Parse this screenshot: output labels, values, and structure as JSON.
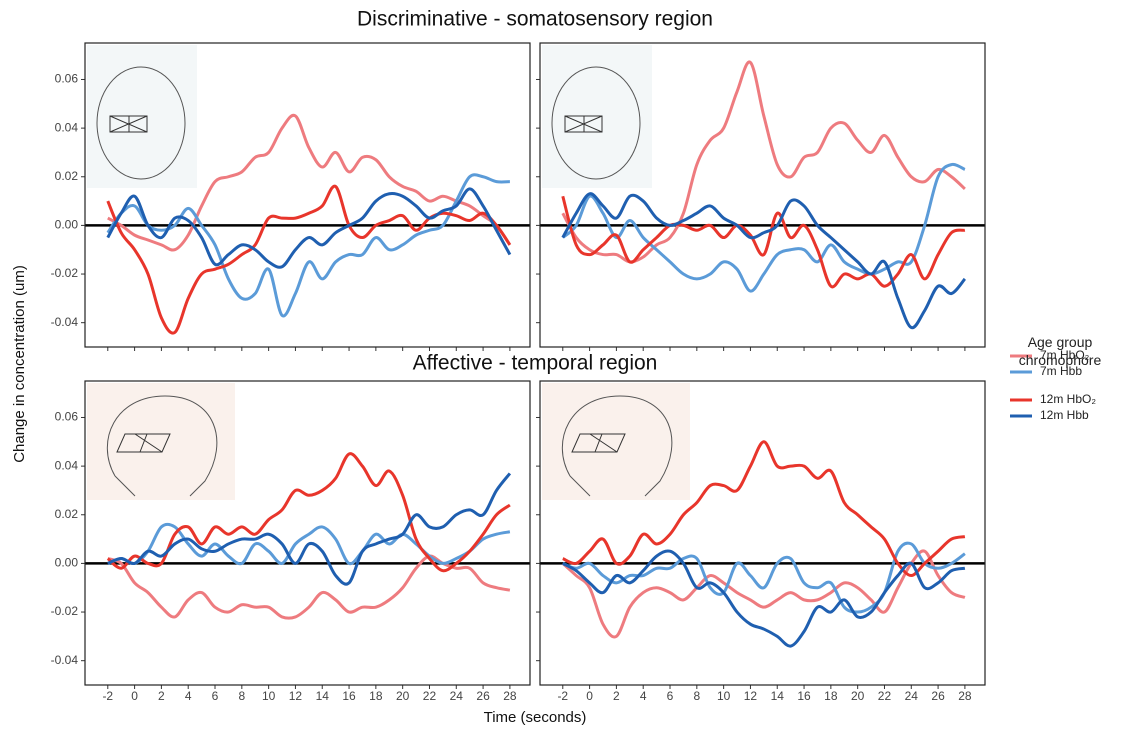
{
  "figure": {
    "y_label": "Change in concentration (um)",
    "x_label": "Time (seconds)",
    "legend_title": "Age group chromophore"
  },
  "chart_data": [
    {
      "type": "line",
      "title": "Discriminative - somatosensory region",
      "x": [
        -2,
        -1,
        0,
        1,
        2,
        3,
        4,
        5,
        6,
        7,
        8,
        9,
        10,
        11,
        12,
        13,
        14,
        15,
        16,
        17,
        18,
        19,
        20,
        21,
        22,
        23,
        24,
        25,
        26,
        27,
        28
      ],
      "xlim": [
        -3.7,
        29.5
      ],
      "ylim": [
        -0.05,
        0.075
      ],
      "xticks": [
        -2,
        0,
        2,
        4,
        6,
        8,
        10,
        12,
        14,
        16,
        18,
        20,
        22,
        24,
        26,
        28
      ],
      "yticks": [
        -0.04,
        -0.02,
        {
          "value": 0,
          "label": "0.00"
        },
        0.02,
        0.04,
        0.06
      ],
      "series": [
        {
          "name": "7m HbO₂",
          "color": "#ee7b7f",
          "values": [
            0.003,
            0.0,
            -0.004,
            -0.006,
            -0.008,
            -0.01,
            -0.004,
            0.008,
            0.018,
            0.02,
            0.022,
            0.028,
            0.03,
            0.04,
            0.045,
            0.032,
            0.024,
            0.03,
            0.022,
            0.028,
            0.027,
            0.02,
            0.016,
            0.014,
            0.01,
            0.012,
            0.01,
            0.008,
            0.004,
            0.0,
            -0.008
          ]
        },
        {
          "name": "7m Hbb",
          "color": "#5b9bd8",
          "values": [
            -0.003,
            0.005,
            0.008,
            0.0,
            -0.002,
            0.0,
            0.007,
            0.0,
            -0.008,
            -0.022,
            -0.03,
            -0.028,
            -0.018,
            -0.037,
            -0.028,
            -0.015,
            -0.022,
            -0.015,
            -0.012,
            -0.012,
            -0.005,
            -0.01,
            -0.008,
            -0.004,
            -0.002,
            0.0,
            0.01,
            0.02,
            0.02,
            0.018,
            0.018
          ]
        },
        {
          "name": "12m HbO₂",
          "color": "#e8352b",
          "values": [
            0.01,
            -0.003,
            -0.01,
            -0.02,
            -0.038,
            -0.044,
            -0.03,
            -0.02,
            -0.018,
            -0.016,
            -0.012,
            -0.008,
            0.003,
            0.003,
            0.003,
            0.005,
            0.008,
            0.016,
            0.0,
            -0.005,
            0.0,
            0.002,
            0.004,
            -0.002,
            0.003,
            0.005,
            0.004,
            0.002,
            0.005,
            0.0,
            -0.008
          ]
        },
        {
          "name": "12m Hbb",
          "color": "#1f5fb0",
          "values": [
            -0.005,
            0.005,
            0.012,
            0.0,
            -0.005,
            0.003,
            0.002,
            -0.005,
            -0.016,
            -0.012,
            -0.008,
            -0.01,
            -0.015,
            -0.017,
            -0.01,
            -0.005,
            -0.008,
            -0.003,
            0.0,
            0.003,
            0.01,
            0.013,
            0.012,
            0.008,
            0.003,
            0.006,
            0.008,
            0.015,
            0.008,
            -0.002,
            -0.012
          ]
        }
      ]
    },
    {
      "type": "line",
      "x": [
        -2,
        -1,
        0,
        1,
        2,
        3,
        4,
        5,
        6,
        7,
        8,
        9,
        10,
        11,
        12,
        13,
        14,
        15,
        16,
        17,
        18,
        19,
        20,
        21,
        22,
        23,
        24,
        25,
        26,
        27,
        28
      ],
      "xlim": [
        -3.7,
        29.5
      ],
      "ylim": [
        -0.05,
        0.075
      ],
      "xticks": [
        -2,
        0,
        2,
        4,
        6,
        8,
        10,
        12,
        14,
        16,
        18,
        20,
        22,
        24,
        26,
        28
      ],
      "yticks": [
        -0.04,
        -0.02,
        {
          "value": 0,
          "label": "0.00"
        },
        0.02,
        0.04,
        0.06
      ],
      "series": [
        {
          "color": "#ee7b7f",
          "values": [
            0.005,
            -0.005,
            -0.01,
            -0.012,
            -0.012,
            -0.015,
            -0.013,
            -0.008,
            -0.005,
            0.005,
            0.025,
            0.035,
            0.04,
            0.055,
            0.067,
            0.045,
            0.025,
            0.02,
            0.028,
            0.03,
            0.04,
            0.042,
            0.035,
            0.03,
            0.037,
            0.028,
            0.02,
            0.018,
            0.023,
            0.02,
            0.015
          ]
        },
        {
          "color": "#5b9bd8",
          "values": [
            -0.005,
            0.0,
            0.012,
            0.005,
            -0.005,
            0.002,
            -0.005,
            -0.01,
            -0.015,
            -0.02,
            -0.022,
            -0.02,
            -0.015,
            -0.018,
            -0.027,
            -0.02,
            -0.012,
            -0.01,
            -0.01,
            -0.015,
            -0.008,
            -0.015,
            -0.018,
            -0.02,
            -0.018,
            -0.015,
            -0.015,
            0.0,
            0.02,
            0.025,
            0.023
          ]
        },
        {
          "color": "#e8352b",
          "values": [
            0.012,
            -0.008,
            -0.012,
            -0.008,
            -0.004,
            -0.015,
            -0.01,
            -0.005,
            0.0,
            0.0,
            -0.002,
            0.0,
            -0.005,
            0.0,
            -0.004,
            -0.012,
            0.005,
            -0.005,
            0.0,
            -0.01,
            -0.025,
            -0.02,
            -0.022,
            -0.02,
            -0.025,
            -0.02,
            -0.012,
            -0.022,
            -0.012,
            -0.003,
            -0.002
          ]
        },
        {
          "color": "#1f5fb0",
          "values": [
            -0.005,
            0.005,
            0.013,
            0.008,
            0.003,
            0.012,
            0.01,
            0.003,
            0.0,
            0.002,
            0.005,
            0.008,
            0.003,
            0.0,
            -0.005,
            -0.003,
            0.0,
            0.01,
            0.008,
            0.0,
            -0.005,
            -0.01,
            -0.015,
            -0.02,
            -0.015,
            -0.03,
            -0.042,
            -0.035,
            -0.025,
            -0.028,
            -0.022
          ]
        }
      ]
    },
    {
      "type": "line",
      "title": "Affective - temporal region",
      "x": [
        -2,
        -1,
        0,
        1,
        2,
        3,
        4,
        5,
        6,
        7,
        8,
        9,
        10,
        11,
        12,
        13,
        14,
        15,
        16,
        17,
        18,
        19,
        20,
        21,
        22,
        23,
        24,
        25,
        26,
        27,
        28
      ],
      "xlim": [
        -3.7,
        29.5
      ],
      "ylim": [
        -0.05,
        0.075
      ],
      "xticks": [
        -2,
        0,
        2,
        4,
        6,
        8,
        10,
        12,
        14,
        16,
        18,
        20,
        22,
        24,
        26,
        28
      ],
      "yticks": [
        -0.04,
        -0.02,
        {
          "value": 0,
          "label": "0.00"
        },
        0.02,
        0.04,
        0.06
      ],
      "series": [
        {
          "color": "#ee7b7f",
          "values": [
            0.002,
            0.0,
            -0.008,
            -0.012,
            -0.018,
            -0.022,
            -0.015,
            -0.012,
            -0.018,
            -0.02,
            -0.017,
            -0.018,
            -0.018,
            -0.022,
            -0.022,
            -0.018,
            -0.012,
            -0.015,
            -0.02,
            -0.018,
            -0.018,
            -0.015,
            -0.01,
            -0.002,
            0.003,
            0.0,
            -0.002,
            -0.002,
            -0.008,
            -0.01,
            -0.011
          ]
        },
        {
          "color": "#5b9bd8",
          "values": [
            0.0,
            0.002,
            0.0,
            0.005,
            0.015,
            0.015,
            0.008,
            0.003,
            0.008,
            0.003,
            0.0,
            0.008,
            0.005,
            0.0,
            0.008,
            0.012,
            0.015,
            0.01,
            0.0,
            0.005,
            0.012,
            0.008,
            0.012,
            0.008,
            0.003,
            0.0,
            0.002,
            0.005,
            0.01,
            0.012,
            0.013
          ]
        },
        {
          "color": "#e8352b",
          "values": [
            0.002,
            -0.002,
            0.003,
            0.0,
            0.0,
            0.012,
            0.015,
            0.008,
            0.015,
            0.012,
            0.015,
            0.012,
            0.018,
            0.022,
            0.03,
            0.028,
            0.03,
            0.035,
            0.045,
            0.04,
            0.032,
            0.038,
            0.028,
            0.01,
            0.002,
            -0.003,
            0.0,
            0.005,
            0.012,
            0.02,
            0.024
          ]
        },
        {
          "color": "#1f5fb0",
          "values": [
            0.0,
            0.002,
            0.0,
            0.005,
            0.003,
            0.008,
            0.01,
            0.006,
            0.005,
            0.008,
            0.01,
            0.01,
            0.012,
            0.008,
            0.0,
            0.008,
            0.005,
            -0.005,
            -0.008,
            0.005,
            0.008,
            0.01,
            0.012,
            0.02,
            0.015,
            0.015,
            0.02,
            0.022,
            0.02,
            0.03,
            0.037
          ]
        }
      ]
    },
    {
      "type": "line",
      "x": [
        -2,
        -1,
        0,
        1,
        2,
        3,
        4,
        5,
        6,
        7,
        8,
        9,
        10,
        11,
        12,
        13,
        14,
        15,
        16,
        17,
        18,
        19,
        20,
        21,
        22,
        23,
        24,
        25,
        26,
        27,
        28
      ],
      "xlim": [
        -3.7,
        29.5
      ],
      "ylim": [
        -0.05,
        0.075
      ],
      "xticks": [
        -2,
        0,
        2,
        4,
        6,
        8,
        10,
        12,
        14,
        16,
        18,
        20,
        22,
        24,
        26,
        28
      ],
      "yticks": [
        -0.04,
        -0.02,
        {
          "value": 0,
          "label": "0.00"
        },
        0.02,
        0.04,
        0.06
      ],
      "series": [
        {
          "color": "#ee7b7f",
          "values": [
            0.0,
            -0.005,
            -0.01,
            -0.025,
            -0.03,
            -0.018,
            -0.012,
            -0.01,
            -0.012,
            -0.015,
            -0.01,
            -0.005,
            -0.008,
            -0.012,
            -0.015,
            -0.018,
            -0.015,
            -0.012,
            -0.015,
            -0.015,
            -0.012,
            -0.008,
            -0.01,
            -0.015,
            -0.02,
            -0.01,
            0.0,
            0.005,
            -0.005,
            -0.012,
            -0.014
          ]
        },
        {
          "color": "#5b9bd8",
          "values": [
            0.0,
            -0.002,
            0.0,
            -0.005,
            -0.008,
            -0.005,
            -0.005,
            -0.002,
            -0.002,
            0.002,
            0.002,
            -0.01,
            -0.012,
            0.0,
            -0.005,
            -0.01,
            0.0,
            0.002,
            -0.008,
            -0.01,
            -0.008,
            -0.018,
            -0.02,
            -0.018,
            -0.012,
            0.005,
            0.008,
            0.0,
            -0.002,
            0.0,
            0.004
          ]
        },
        {
          "color": "#e8352b",
          "values": [
            0.002,
            0.0,
            0.005,
            0.01,
            0.0,
            0.003,
            0.012,
            0.008,
            0.012,
            0.02,
            0.025,
            0.032,
            0.032,
            0.03,
            0.04,
            0.05,
            0.04,
            0.04,
            0.04,
            0.035,
            0.038,
            0.025,
            0.02,
            0.015,
            0.01,
            0.0,
            -0.005,
            0.0,
            0.005,
            0.01,
            0.011
          ]
        },
        {
          "color": "#1f5fb0",
          "values": [
            0.0,
            -0.003,
            -0.008,
            -0.012,
            -0.005,
            -0.008,
            -0.003,
            0.003,
            0.005,
            0.0,
            -0.01,
            -0.008,
            -0.012,
            -0.02,
            -0.025,
            -0.027,
            -0.03,
            -0.034,
            -0.028,
            -0.018,
            -0.02,
            -0.015,
            -0.022,
            -0.02,
            -0.012,
            -0.005,
            0.0,
            -0.01,
            -0.008,
            -0.003,
            -0.002
          ]
        }
      ]
    }
  ]
}
